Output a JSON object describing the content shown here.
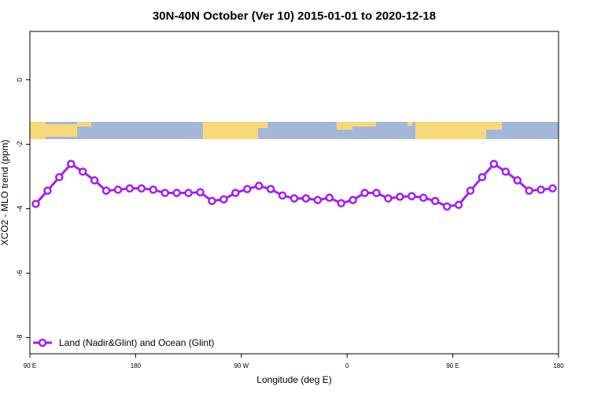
{
  "chart_data": {
    "type": "line",
    "title": "30N-40N October (Ver 10)   2015-01-01 to 2020-12-18",
    "x_label": "Longitude (deg E)",
    "y_label": "XCO2 - MLO trend (ppm)",
    "xlim": [
      90,
      540
    ],
    "xticks": [
      {
        "value": 90,
        "label": "90 E"
      },
      180,
      {
        "value": 270,
        "label": "90 W"
      },
      {
        "value": 360,
        "label": "0"
      },
      {
        "value": 450,
        "label": "90 E"
      },
      {
        "value": 540,
        "label": "180"
      }
    ],
    "ylim": [
      -8.5,
      1.5
    ],
    "yticks": [
      0,
      -2,
      -4,
      -6,
      -8
    ],
    "legend": "bottom-left",
    "x": [
      95,
      105,
      115,
      125,
      135,
      145,
      155,
      165,
      175,
      185,
      195,
      205,
      215,
      225,
      235,
      245,
      255,
      265,
      275,
      285,
      295,
      305,
      315,
      325,
      335,
      345,
      355,
      365,
      375,
      385,
      395,
      405,
      415,
      425,
      435,
      445,
      455,
      465,
      475,
      485,
      495,
      505,
      515,
      525,
      535
    ],
    "series": [
      {
        "name": "Land (Nadir&Glint) and Ocean (Glint)",
        "color": "#a020f0",
        "values": [
          -3.85,
          -3.44,
          -3.02,
          -2.61,
          -2.85,
          -3.12,
          -3.44,
          -3.41,
          -3.37,
          -3.37,
          -3.41,
          -3.51,
          -3.51,
          -3.51,
          -3.49,
          -3.76,
          -3.71,
          -3.51,
          -3.39,
          -3.29,
          -3.39,
          -3.59,
          -3.68,
          -3.68,
          -3.73,
          -3.66,
          -3.83,
          -3.73,
          -3.51,
          -3.51,
          -3.68,
          -3.63,
          -3.61,
          -3.66,
          -3.76,
          -3.93,
          -3.88,
          -3.44,
          -3.02,
          -2.61,
          -2.85,
          -3.12,
          -3.44,
          -3.41,
          -3.37
        ]
      }
    ]
  }
}
